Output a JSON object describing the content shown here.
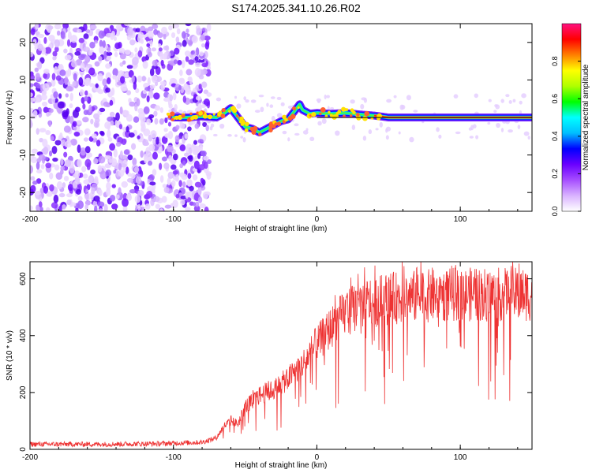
{
  "figure": {
    "title": "S174.2025.341.10.26.R02"
  },
  "chart_data": [
    {
      "type": "heatmap",
      "xlabel": "Height of straight line (km)",
      "ylabel": "Frequency (Hz)",
      "xlim": [
        -200,
        150
      ],
      "ylim": [
        -25,
        25
      ],
      "xticks": [
        -200,
        -100,
        0,
        100
      ],
      "xtick_labels": [
        "-200",
        "-100",
        "0",
        "100"
      ],
      "yticks": [
        -20,
        -10,
        0,
        10,
        20
      ],
      "ytick_labels": [
        "-20",
        "-10",
        "0",
        "10",
        "20"
      ],
      "noise_region": {
        "x_from": -200,
        "x_to": -75,
        "frequency_span": [
          -25,
          25
        ]
      },
      "ridge_trace": [
        [
          -100,
          0
        ],
        [
          -90,
          0
        ],
        [
          -80,
          0.3
        ],
        [
          -70,
          0
        ],
        [
          -65,
          1
        ],
        [
          -60,
          2.5
        ],
        [
          -55,
          0
        ],
        [
          -50,
          -2.5
        ],
        [
          -45,
          -3
        ],
        [
          -40,
          -4
        ],
        [
          -35,
          -3
        ],
        [
          -30,
          -2
        ],
        [
          -25,
          -1
        ],
        [
          -20,
          -0.5
        ],
        [
          -15,
          2
        ],
        [
          -12,
          3.5
        ],
        [
          -10,
          2
        ],
        [
          -5,
          1
        ],
        [
          0,
          1.2
        ],
        [
          10,
          1
        ],
        [
          20,
          1.2
        ],
        [
          30,
          0.8
        ],
        [
          40,
          0.5
        ],
        [
          50,
          0
        ],
        [
          80,
          0
        ],
        [
          100,
          0
        ],
        [
          150,
          0
        ]
      ],
      "reference_line_frequency": 0,
      "colorbar": {
        "label": "Normalized spectral amplitude",
        "range": [
          0,
          1
        ],
        "ticks": [
          0.0,
          0.2,
          0.4,
          0.6,
          0.8
        ],
        "tick_labels": [
          "0.0",
          "0.2",
          "0.4",
          "0.6",
          "0.8"
        ],
        "colors": [
          "#ffffff",
          "#d9b3ff",
          "#a64dff",
          "#6a00ff",
          "#0000ff",
          "#00bfff",
          "#00ffff",
          "#00ff00",
          "#b0ff00",
          "#ffff00",
          "#ff8000",
          "#ff0000",
          "#ff1080"
        ]
      }
    },
    {
      "type": "line",
      "xlabel": "Height of straight line (km)",
      "ylabel": "SNR (10 * v/v)",
      "xlim": [
        -200,
        150
      ],
      "ylim": [
        0,
        660
      ],
      "xticks": [
        -200,
        -100,
        0,
        100
      ],
      "xtick_labels": [
        "-200",
        "-100",
        "0",
        "100"
      ],
      "yticks": [
        0,
        200,
        400,
        600
      ],
      "ytick_labels": [
        "0",
        "200",
        "400",
        "600"
      ],
      "series": [
        {
          "name": "SNR",
          "color": "#ee3333",
          "x": [
            -200,
            -150,
            -110,
            -80,
            -70,
            -65,
            -60,
            -55,
            -50,
            -40,
            -30,
            -20,
            -10,
            0,
            10,
            20,
            30,
            40,
            50,
            60,
            80,
            100,
            120,
            150
          ],
          "y": [
            18,
            18,
            20,
            25,
            40,
            80,
            100,
            90,
            150,
            190,
            210,
            250,
            300,
            370,
            430,
            480,
            510,
            520,
            530,
            535,
            540,
            545,
            545,
            545
          ]
        }
      ]
    }
  ]
}
